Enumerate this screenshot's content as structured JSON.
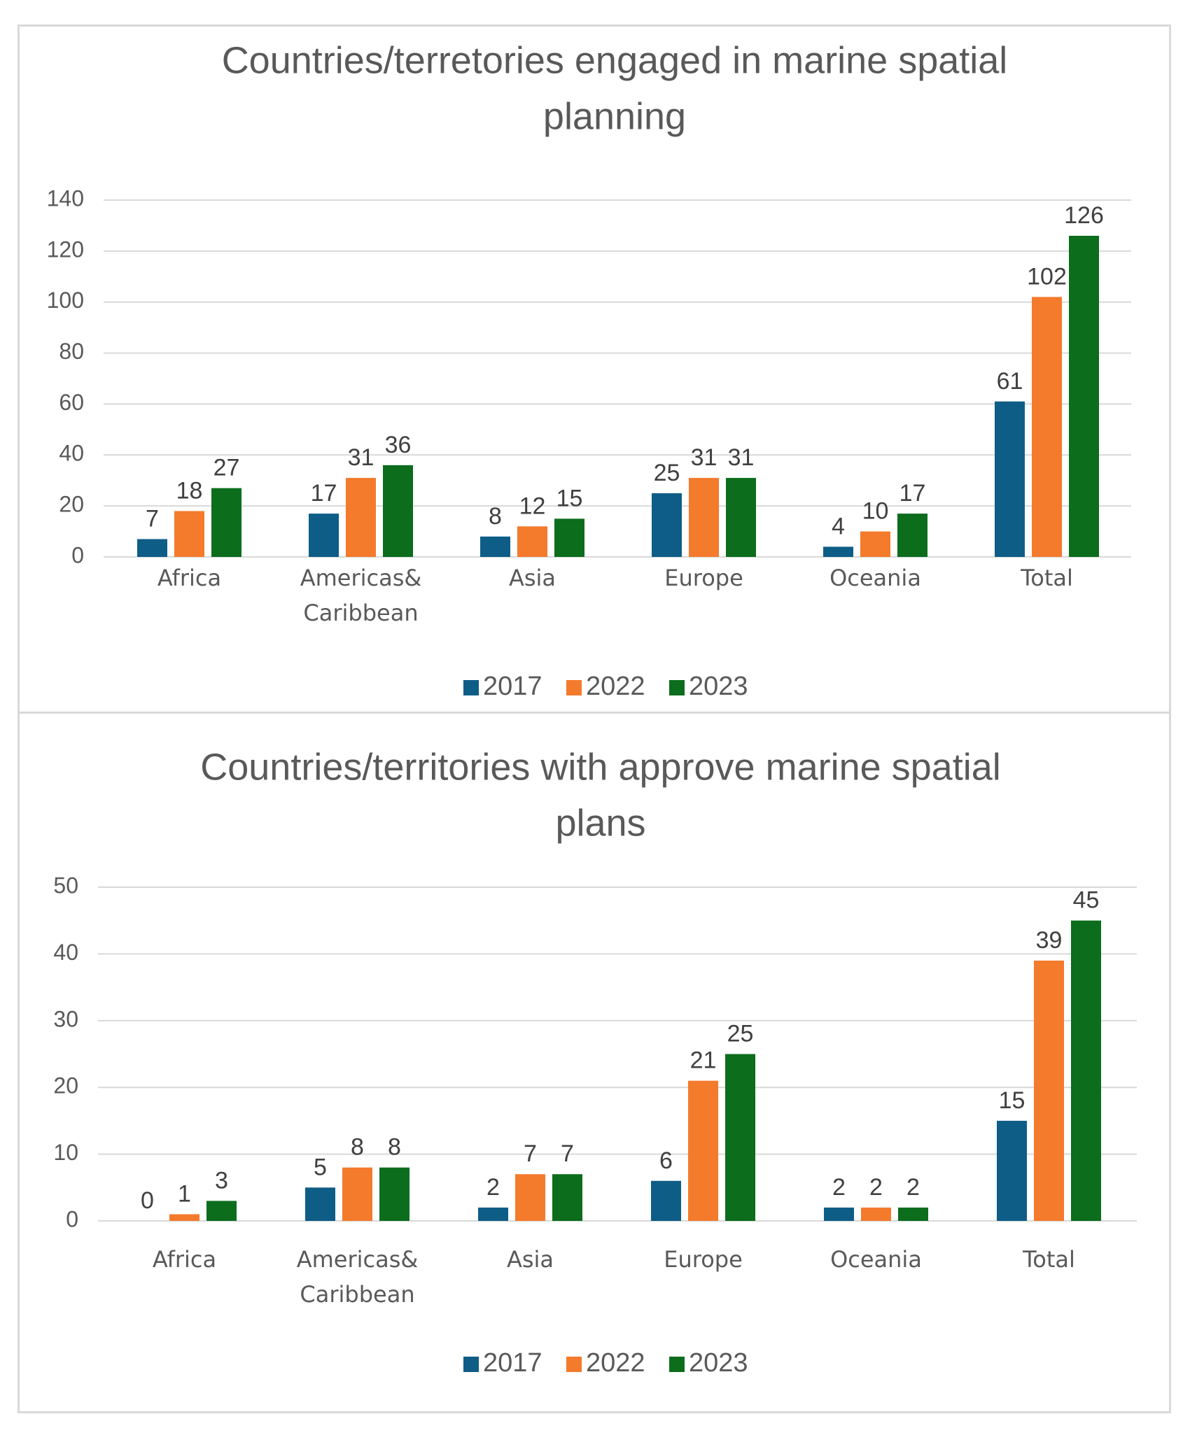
{
  "colors": {
    "2017": "#0e5d87",
    "2022": "#f47a2c",
    "2023": "#0c6d1d"
  },
  "chart_data": [
    {
      "type": "bar",
      "title": [
        "Countries/terretories engaged in marine spatial",
        "planning"
      ],
      "categories": [
        [
          "Africa"
        ],
        [
          "Americas&",
          "Caribbean"
        ],
        [
          "Asia"
        ],
        [
          "Europe"
        ],
        [
          "Oceania"
        ],
        [
          "Total"
        ]
      ],
      "series": [
        {
          "name": "2017",
          "values": [
            7,
            17,
            8,
            25,
            4,
            61
          ]
        },
        {
          "name": "2022",
          "values": [
            18,
            31,
            12,
            31,
            10,
            102
          ]
        },
        {
          "name": "2023",
          "values": [
            27,
            36,
            15,
            31,
            17,
            126
          ]
        }
      ],
      "ylim": [
        0,
        140
      ],
      "yticks": [
        "0",
        "20",
        "40",
        "60",
        "80",
        "100",
        "120",
        "140"
      ],
      "legend": "bottom",
      "grid": true
    },
    {
      "type": "bar",
      "title": [
        "Countries/territories with approve marine spatial",
        "plans"
      ],
      "categories": [
        [
          "Africa"
        ],
        [
          "Americas&",
          "Caribbean"
        ],
        [
          "Asia"
        ],
        [
          "Europe"
        ],
        [
          "Oceania"
        ],
        [
          "Total"
        ]
      ],
      "series": [
        {
          "name": "2017",
          "values": [
            0,
            5,
            2,
            6,
            2,
            15
          ]
        },
        {
          "name": "2022",
          "values": [
            1,
            8,
            7,
            21,
            2,
            39
          ]
        },
        {
          "name": "2023",
          "values": [
            3,
            8,
            7,
            25,
            2,
            45
          ]
        }
      ],
      "ylim": [
        0,
        50
      ],
      "yticks": [
        "0",
        "10",
        "20",
        "30",
        "40",
        "50"
      ],
      "legend": "bottom",
      "grid": true
    }
  ]
}
